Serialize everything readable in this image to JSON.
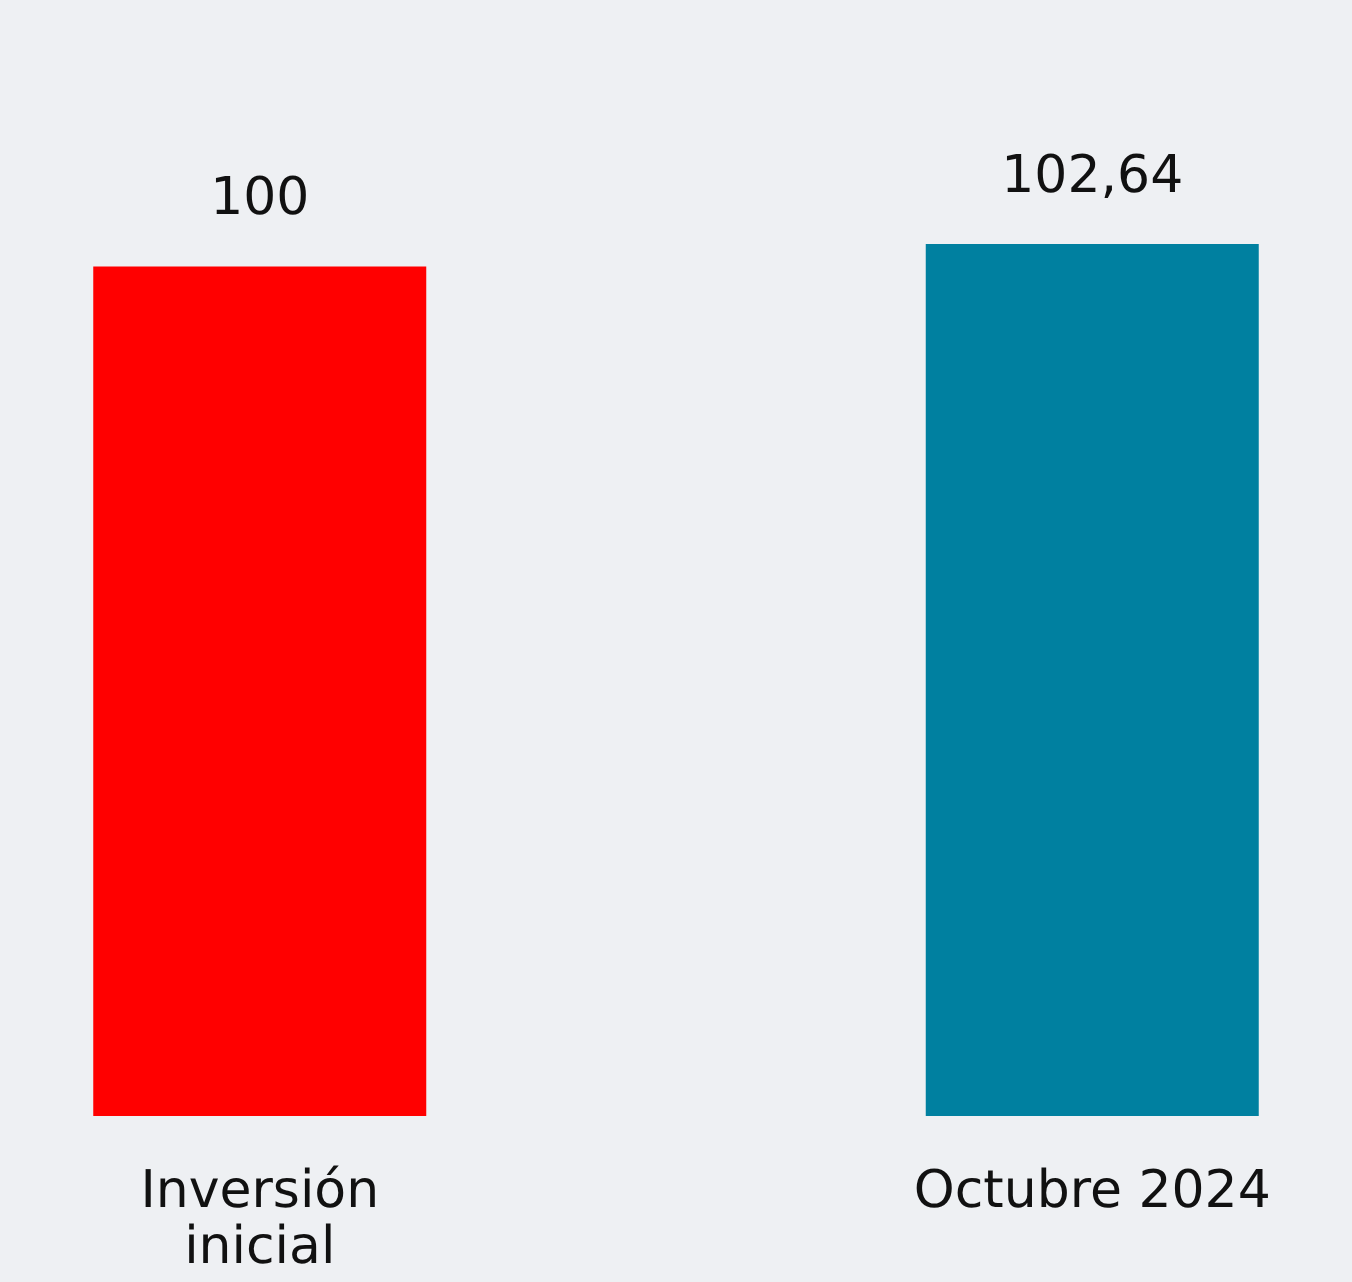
{
  "chart_data": {
    "type": "bar",
    "categories": [
      "Inversión inicial",
      "Octubre 2024"
    ],
    "values": [
      100,
      102.64
    ],
    "value_labels": [
      "100",
      "102,64"
    ],
    "colors": [
      "#ff0000",
      "#0080a0"
    ]
  }
}
